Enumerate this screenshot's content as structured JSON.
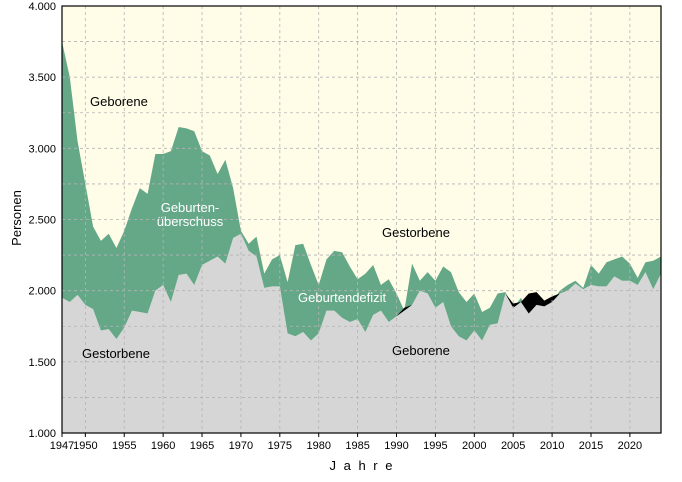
{
  "chart_data": {
    "type": "area",
    "xlabel": "J a h r e",
    "ylabel": "Personen",
    "xlim": [
      1947,
      2024
    ],
    "ylim": [
      1000,
      4000
    ],
    "x_ticks": [
      1947,
      1950,
      1955,
      1960,
      1965,
      1970,
      1975,
      1980,
      1985,
      1990,
      1995,
      2000,
      2005,
      2010,
      2015,
      2020
    ],
    "y_ticks": [
      1000,
      1500,
      2000,
      2500,
      3000,
      3500,
      4000
    ],
    "y_tick_labels": [
      "1.000",
      "1.500",
      "2.000",
      "2.500",
      "3.000",
      "3.500",
      "4.000"
    ],
    "grid": "dashed vertical and horizontal",
    "colors": {
      "top_fill": "#FFFDE8",
      "bottom_fill": "#D6D6D6",
      "surplus": "#64A888",
      "deficit": "#000000",
      "grid": "#B4B4B4"
    },
    "years": [
      1947,
      1948,
      1949,
      1950,
      1951,
      1952,
      1953,
      1954,
      1955,
      1956,
      1957,
      1958,
      1959,
      1960,
      1961,
      1962,
      1963,
      1964,
      1965,
      1966,
      1967,
      1968,
      1969,
      1970,
      1971,
      1972,
      1973,
      1974,
      1975,
      1976,
      1977,
      1978,
      1979,
      1980,
      1981,
      1982,
      1983,
      1984,
      1985,
      1986,
      1987,
      1988,
      1989,
      1990,
      1991,
      1992,
      1993,
      1994,
      1995,
      1996,
      1997,
      1998,
      1999,
      2000,
      2001,
      2002,
      2003,
      2004,
      2005,
      2006,
      2007,
      2008,
      2009,
      2010,
      2011,
      2012,
      2013,
      2014,
      2015,
      2016,
      2017,
      2018,
      2019,
      2020,
      2021,
      2022,
      2023,
      2024
    ],
    "series": [
      {
        "name": "Geborene",
        "values": [
          3750,
          3500,
          3050,
          2750,
          2450,
          2350,
          2400,
          2300,
          2420,
          2580,
          2720,
          2680,
          2960,
          2960,
          2980,
          3150,
          3140,
          3120,
          2980,
          2950,
          2820,
          2920,
          2720,
          2420,
          2330,
          2380,
          2120,
          2220,
          2250,
          2060,
          2320,
          2330,
          2180,
          2040,
          2220,
          2280,
          2270,
          2170,
          2080,
          2120,
          2180,
          2040,
          2080,
          1980,
          1860,
          2190,
          2070,
          2130,
          2070,
          2170,
          2130,
          1990,
          1920,
          1980,
          1850,
          1880,
          1980,
          1990,
          1880,
          1950,
          1840,
          1900,
          1890,
          1920,
          2000,
          2040,
          2070,
          2020,
          2180,
          2120,
          2200,
          2220,
          2240,
          2190,
          2090,
          2200,
          2210,
          2240
        ]
      },
      {
        "name": "Gestorbene",
        "values": [
          1950,
          1920,
          1970,
          1900,
          1870,
          1720,
          1730,
          1660,
          1740,
          1860,
          1850,
          1840,
          2000,
          2040,
          1920,
          2110,
          2120,
          2040,
          2180,
          2210,
          2240,
          2190,
          2370,
          2400,
          2280,
          2240,
          2020,
          2030,
          2030,
          1700,
          1680,
          1710,
          1650,
          1700,
          1860,
          1860,
          1810,
          1780,
          1800,
          1710,
          1830,
          1860,
          1780,
          1820,
          1880,
          1900,
          2000,
          1980,
          1880,
          1920,
          1750,
          1680,
          1650,
          1720,
          1650,
          1760,
          1770,
          1980,
          1910,
          1920,
          1980,
          1990,
          1930,
          1960,
          1980,
          2000,
          2050,
          2010,
          2040,
          2030,
          2030,
          2100,
          2070,
          2070,
          2040,
          2130,
          2010,
          2120
        ]
      }
    ],
    "annotations": {
      "top_births": "Geborene",
      "surplus_line1": "Geburten-",
      "surplus_line2": "überschuss",
      "top_deaths": "Gestorbene",
      "deficit": "Geburtendefizit",
      "bottom_deaths": "Gestorbene",
      "bottom_births": "Geborene"
    }
  }
}
